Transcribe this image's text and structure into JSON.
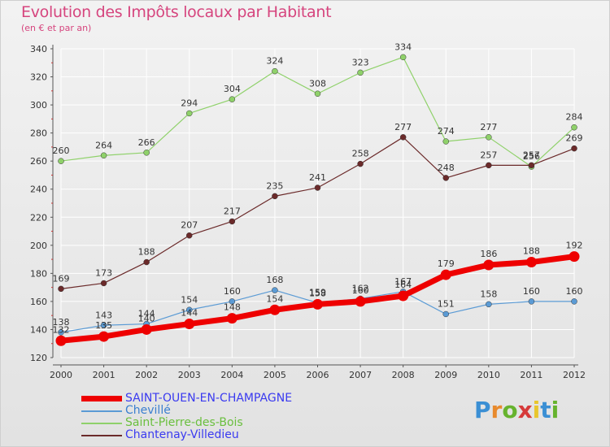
{
  "header": {
    "title": "Evolution des Impôts locaux par Habitant",
    "subtitle": "(en € et par an)"
  },
  "logo": {
    "text": "Proxiti"
  },
  "colors": {
    "grid": "#ffffff",
    "axis": "#555555",
    "label": "#333333"
  },
  "chart_data": {
    "type": "line",
    "title": "Evolution des Impôts locaux par Habitant",
    "subtitle": "(en € et par an)",
    "xlabel": "",
    "ylabel": "",
    "x": [
      "2000",
      "2001",
      "2002",
      "2003",
      "2004",
      "2005",
      "2006",
      "2007",
      "2008",
      "2009",
      "2010",
      "2011",
      "2012"
    ],
    "ylim": [
      120,
      340
    ],
    "yticks": [
      120,
      140,
      160,
      180,
      200,
      220,
      240,
      260,
      280,
      300,
      320,
      340
    ],
    "grid": true,
    "legend_position": "bottom-left",
    "series": [
      {
        "name": "SAINT-OUEN-EN-CHAMPAGNE",
        "color": "#ee0000",
        "values": [
          132,
          135,
          140,
          144,
          148,
          154,
          158,
          160,
          164,
          179,
          186,
          188,
          192
        ]
      },
      {
        "name": "Chevillé",
        "color": "#5b9bd5",
        "values": [
          138,
          143,
          144,
          154,
          160,
          168,
          159,
          162,
          167,
          151,
          158,
          160,
          160
        ]
      },
      {
        "name": "Saint-Pierre-des-Bois",
        "color": "#8fd16a",
        "values": [
          260,
          264,
          266,
          294,
          304,
          324,
          308,
          323,
          334,
          274,
          277,
          256,
          284
        ]
      },
      {
        "name": "Chantenay-Villedieu",
        "color": "#6b2a2a",
        "values": [
          169,
          173,
          188,
          207,
          217,
          235,
          241,
          258,
          277,
          248,
          257,
          257,
          269
        ]
      }
    ]
  }
}
